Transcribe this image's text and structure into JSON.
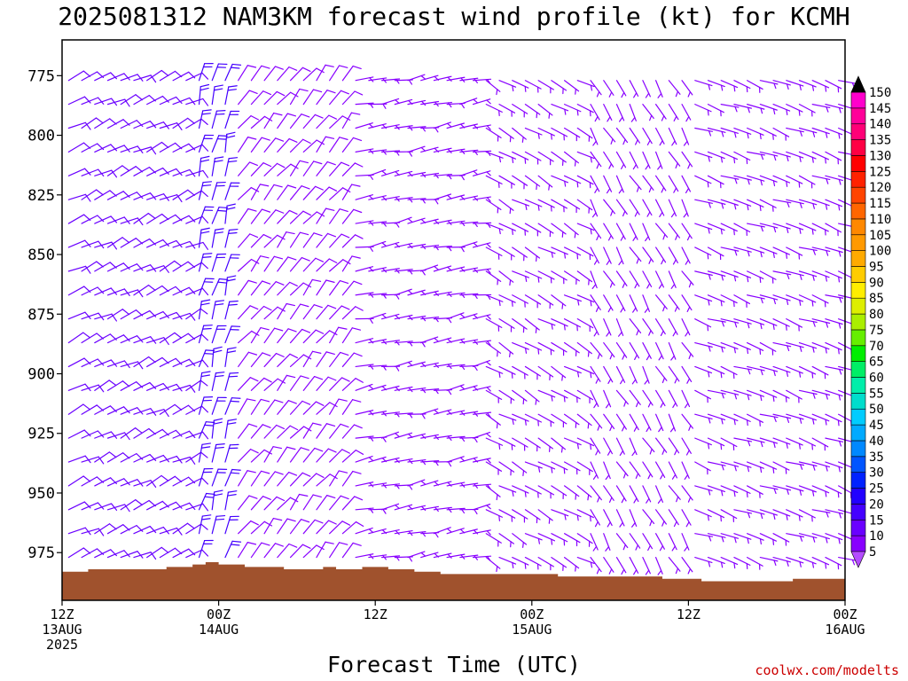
{
  "chart_data": {
    "type": "wind_barbs",
    "title": "2025081312 NAM3KM forecast wind profile (kt) for KCMH",
    "xlabel": "Forecast Time (UTC)",
    "credit": "coolwx.com/modelts",
    "x_start_hour": 0,
    "x_end_hour": 60,
    "x_ticks": [
      {
        "hour": 0,
        "lines": [
          "12Z",
          "13AUG",
          "2025"
        ]
      },
      {
        "hour": 12,
        "lines": [
          "00Z",
          "14AUG"
        ]
      },
      {
        "hour": 24,
        "lines": [
          "12Z"
        ]
      },
      {
        "hour": 36,
        "lines": [
          "00Z",
          "15AUG"
        ]
      },
      {
        "hour": 48,
        "lines": [
          "12Z"
        ]
      },
      {
        "hour": 60,
        "lines": [
          "00Z",
          "16AUG"
        ]
      }
    ],
    "y_ticks": [
      775,
      800,
      825,
      850,
      875,
      900,
      925,
      950,
      975
    ],
    "y_range_hpa": [
      760,
      995
    ],
    "pressure_levels": [
      777,
      787,
      797,
      807,
      817,
      827,
      837,
      847,
      857,
      867,
      877,
      887,
      897,
      907,
      917,
      927,
      937,
      947,
      957,
      967,
      977
    ],
    "surface_pressure": [
      [
        0,
        983
      ],
      [
        2,
        982
      ],
      [
        6,
        982
      ],
      [
        8,
        981
      ],
      [
        10,
        980
      ],
      [
        11,
        979
      ],
      [
        12,
        980
      ],
      [
        14,
        981
      ],
      [
        17,
        982
      ],
      [
        19,
        982
      ],
      [
        20,
        981
      ],
      [
        21,
        982
      ],
      [
        23,
        981
      ],
      [
        25,
        982
      ],
      [
        27,
        983
      ],
      [
        29,
        984
      ],
      [
        31,
        984
      ],
      [
        35,
        984
      ],
      [
        36,
        984
      ],
      [
        38,
        985
      ],
      [
        40,
        985
      ],
      [
        45,
        985
      ],
      [
        46,
        986
      ],
      [
        47,
        986
      ],
      [
        49,
        987
      ],
      [
        51,
        987
      ],
      [
        54,
        987
      ],
      [
        56,
        986
      ],
      [
        60,
        986
      ]
    ],
    "colorbar": {
      "min": 5,
      "max": 150,
      "step": 5,
      "colors": [
        "#8800ff",
        "#6a00ff",
        "#4400ff",
        "#2200ff",
        "#0022ff",
        "#0055ff",
        "#0088ff",
        "#00aaff",
        "#00ccff",
        "#00ddcc",
        "#00eeaa",
        "#00ee66",
        "#00ee00",
        "#66ee00",
        "#aaee00",
        "#ddee00",
        "#ffee00",
        "#ffcc00",
        "#ffaa00",
        "#ff9900",
        "#ff8800",
        "#ff6600",
        "#ff4400",
        "#ff2200",
        "#ff0000",
        "#ff0044",
        "#ff0077",
        "#ff0099",
        "#ff00cc"
      ]
    },
    "wind_regimes": [
      {
        "start_hour": 0,
        "end_hour": 10,
        "direction_deg": 65,
        "speed_kt": 12
      },
      {
        "start_hour": 10,
        "end_hour": 13,
        "direction_deg": 15,
        "speed_kt": 18
      },
      {
        "start_hour": 13,
        "end_hour": 22,
        "direction_deg": 40,
        "speed_kt": 8
      },
      {
        "start_hour": 22,
        "end_hour": 32,
        "direction_deg": 80,
        "speed_kt": 6
      },
      {
        "start_hour": 32,
        "end_hour": 40,
        "direction_deg": 120,
        "speed_kt": 5
      },
      {
        "start_hour": 40,
        "end_hour": 48,
        "direction_deg": 150,
        "speed_kt": 5
      },
      {
        "start_hour": 48,
        "end_hour": 60,
        "direction_deg": 110,
        "speed_kt": 7
      }
    ],
    "surface_color": "#a0522d",
    "barb_color": "#7a2cff"
  }
}
